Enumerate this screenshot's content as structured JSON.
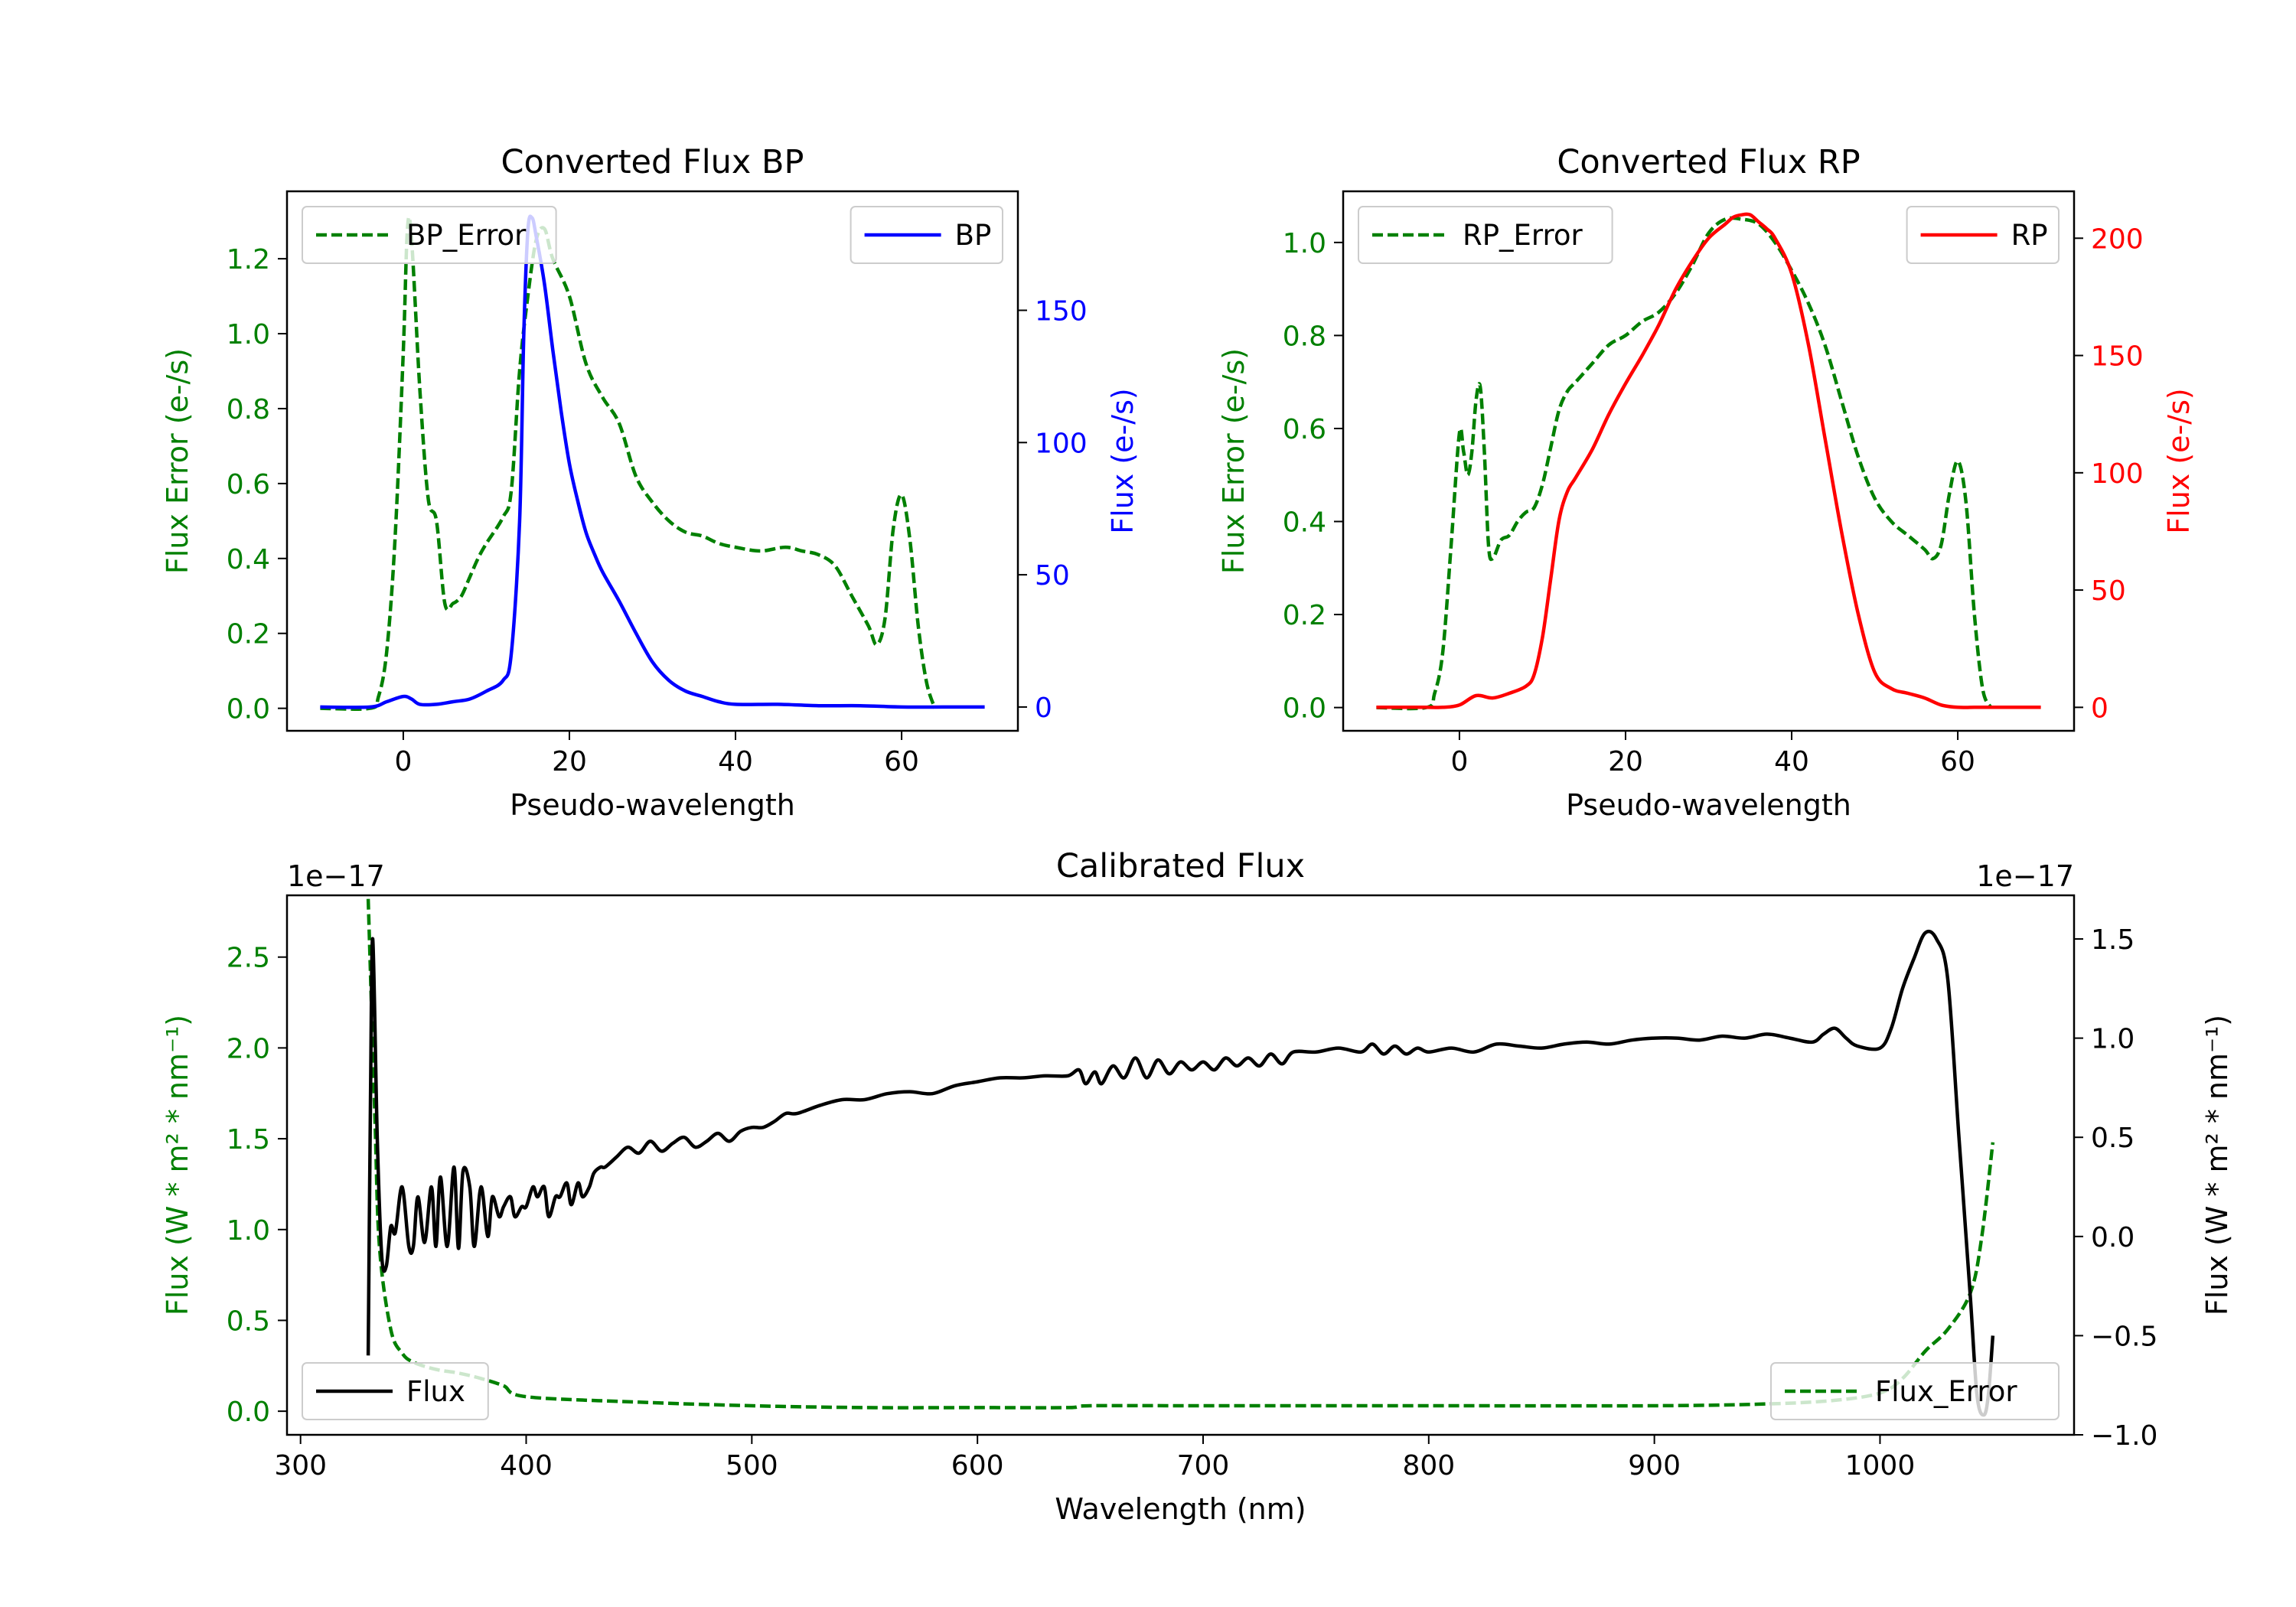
{
  "colors": {
    "green": "#008000",
    "blue": "#0000ff",
    "red": "#ff0000",
    "black": "#000000",
    "legend_edge": "#cccccc"
  },
  "chart_data": [
    {
      "id": "bp",
      "type": "line",
      "title": "Converted Flux BP",
      "xlabel": "Pseudo-wavelength",
      "ylabel_left": "Flux Error (e-/s)",
      "ylabel_right": "Flux (e-/s)",
      "xlim": [
        -14,
        74
      ],
      "ylim_left": [
        -0.06,
        1.38
      ],
      "ylim_right": [
        -9,
        195
      ],
      "xticks": [
        "0",
        "20",
        "40",
        "60"
      ],
      "xtick_values": [
        0,
        20,
        40,
        60
      ],
      "yticks_left": [
        "0.0",
        "0.2",
        "0.4",
        "0.6",
        "0.8",
        "1.0",
        "1.2"
      ],
      "ytick_values_left": [
        0,
        0.2,
        0.4,
        0.6,
        0.8,
        1.0,
        1.2
      ],
      "yticks_right": [
        "0",
        "50",
        "100",
        "150"
      ],
      "ytick_values_right": [
        0,
        50,
        100,
        150
      ],
      "legend_left": "BP_Error",
      "legend_right": "BP",
      "series": [
        {
          "name": "BP_Error",
          "axis": "left",
          "style": "dashed",
          "color": "green",
          "x": [
            -10,
            -4,
            -3,
            -2,
            -1,
            0,
            0.5,
            1,
            2,
            3,
            4,
            5,
            6,
            7,
            8,
            9,
            10,
            12,
            13,
            14,
            15,
            16,
            17,
            18,
            20,
            22,
            24,
            26,
            28,
            30,
            32,
            34,
            36,
            38,
            40,
            43,
            46,
            48,
            50,
            52,
            54,
            56,
            57,
            58,
            59,
            60,
            61,
            62,
            63,
            64
          ],
          "y": [
            0,
            0,
            0.03,
            0.15,
            0.45,
            0.95,
            1.28,
            1.25,
            0.85,
            0.56,
            0.5,
            0.28,
            0.28,
            0.3,
            0.35,
            0.4,
            0.44,
            0.51,
            0.58,
            0.9,
            1.1,
            1.25,
            1.28,
            1.2,
            1.1,
            0.92,
            0.83,
            0.76,
            0.62,
            0.55,
            0.5,
            0.47,
            0.46,
            0.44,
            0.43,
            0.42,
            0.43,
            0.42,
            0.41,
            0.38,
            0.3,
            0.22,
            0.17,
            0.24,
            0.48,
            0.57,
            0.45,
            0.22,
            0.07,
            0.0
          ]
        },
        {
          "name": "BP",
          "axis": "right",
          "style": "solid",
          "color": "blue",
          "x": [
            -10,
            -4,
            -2,
            0,
            1,
            2,
            4,
            6,
            8,
            10,
            12,
            13,
            14,
            14.5,
            15,
            15.5,
            16,
            17,
            18,
            19,
            20,
            21,
            22,
            23,
            24,
            26,
            28,
            30,
            32,
            34,
            36,
            38,
            40,
            45,
            50,
            55,
            60,
            65,
            70
          ],
          "y": [
            0,
            0,
            2,
            4,
            3,
            1,
            1,
            2,
            3,
            6,
            10,
            20,
            70,
            140,
            180,
            185,
            178,
            160,
            135,
            112,
            92,
            78,
            66,
            58,
            51,
            40,
            28,
            17,
            10,
            6,
            4,
            2,
            1,
            1,
            0.5,
            0.5,
            0,
            0,
            0
          ]
        }
      ]
    },
    {
      "id": "rp",
      "type": "line",
      "title": "Converted Flux RP",
      "xlabel": "Pseudo-wavelength",
      "ylabel_left": "Flux Error (e-/s)",
      "ylabel_right": "Flux (e-/s)",
      "xlim": [
        -14,
        74
      ],
      "ylim_left": [
        -0.05,
        1.11
      ],
      "ylim_right": [
        -10,
        220
      ],
      "xticks": [
        "0",
        "20",
        "40",
        "60"
      ],
      "xtick_values": [
        0,
        20,
        40,
        60
      ],
      "yticks_left": [
        "0.0",
        "0.2",
        "0.4",
        "0.6",
        "0.8",
        "1.0"
      ],
      "ytick_values_left": [
        0,
        0.2,
        0.4,
        0.6,
        0.8,
        1.0
      ],
      "yticks_right": [
        "0",
        "50",
        "100",
        "150",
        "200"
      ],
      "ytick_values_right": [
        0,
        50,
        100,
        150,
        200
      ],
      "legend_left": "RP_Error",
      "legend_right": "RP",
      "series": [
        {
          "name": "RP_Error",
          "axis": "left",
          "style": "dashed",
          "color": "green",
          "x": [
            -10,
            -4,
            -3,
            -2,
            -1,
            0,
            0.5,
            1,
            1.5,
            2,
            2.5,
            3,
            3.5,
            4,
            5,
            6,
            7,
            8,
            9,
            10,
            11,
            12,
            13,
            14,
            16,
            18,
            20,
            22,
            24,
            26,
            28,
            30,
            32,
            34,
            36,
            38,
            40,
            42,
            44,
            46,
            48,
            50,
            52,
            54,
            56,
            57,
            58,
            59,
            60,
            61,
            62,
            63,
            64
          ],
          "y": [
            0,
            0,
            0.03,
            0.12,
            0.35,
            0.59,
            0.55,
            0.5,
            0.55,
            0.66,
            0.69,
            0.55,
            0.35,
            0.32,
            0.36,
            0.37,
            0.4,
            0.42,
            0.43,
            0.48,
            0.56,
            0.64,
            0.68,
            0.7,
            0.74,
            0.78,
            0.8,
            0.83,
            0.85,
            0.89,
            0.95,
            1.02,
            1.05,
            1.05,
            1.04,
            1.0,
            0.94,
            0.87,
            0.78,
            0.66,
            0.54,
            0.45,
            0.4,
            0.37,
            0.34,
            0.32,
            0.35,
            0.46,
            0.53,
            0.44,
            0.2,
            0.04,
            0.0
          ]
        },
        {
          "name": "RP",
          "axis": "right",
          "style": "solid",
          "color": "red",
          "x": [
            -10,
            -4,
            -2,
            0,
            2,
            4,
            6,
            8,
            9,
            10,
            11,
            12,
            13,
            14,
            16,
            18,
            20,
            22,
            24,
            26,
            28,
            30,
            32,
            33,
            34,
            35,
            36,
            37,
            38,
            40,
            42,
            44,
            46,
            48,
            50,
            52,
            54,
            56,
            58,
            60,
            62,
            65,
            70
          ],
          "y": [
            0,
            0,
            0,
            1,
            5,
            4,
            6,
            9,
            14,
            30,
            55,
            80,
            92,
            98,
            110,
            125,
            138,
            150,
            163,
            178,
            190,
            200,
            206,
            209,
            210,
            210,
            207,
            204,
            200,
            185,
            155,
            115,
            75,
            40,
            15,
            8,
            6,
            4,
            1,
            0,
            0,
            0,
            0
          ]
        }
      ]
    },
    {
      "id": "calibrated",
      "type": "line",
      "title": "Calibrated Flux",
      "xlabel": "Wavelength (nm)",
      "ylabel_left": "Flux (W * m² * nm⁻¹)",
      "ylabel_right": "Flux (W * m² * nm⁻¹)",
      "offset_left": "1e−17",
      "offset_right": "1e−17",
      "xlim": [
        294,
        1086
      ],
      "ylim_left": [
        -0.13,
        2.84
      ],
      "ylim_right": [
        -1.0,
        1.72
      ],
      "xticks": [
        "300",
        "400",
        "500",
        "600",
        "700",
        "800",
        "900",
        "1000"
      ],
      "xtick_values": [
        300,
        400,
        500,
        600,
        700,
        800,
        900,
        1000
      ],
      "yticks_left": [
        "0.0",
        "0.5",
        "1.0",
        "1.5",
        "2.0",
        "2.5"
      ],
      "ytick_values_left": [
        0,
        0.5,
        1.0,
        1.5,
        2.0,
        2.5
      ],
      "yticks_right": [
        "−1.0",
        "−0.5",
        "0.0",
        "0.5",
        "1.0",
        "1.5"
      ],
      "ytick_values_right": [
        -1.0,
        -0.5,
        0.0,
        0.5,
        1.0,
        1.5
      ],
      "legend_left": "Flux",
      "legend_right": "Flux_Error",
      "series": [
        {
          "name": "Flux_Error",
          "axis": "left",
          "style": "dashed",
          "color": "green",
          "x": [
            330,
            333,
            335,
            340,
            345,
            350,
            360,
            370,
            380,
            390,
            400,
            450,
            500,
            550,
            600,
            640,
            650,
            700,
            800,
            900,
            950,
            980,
            1000,
            1010,
            1020,
            1030,
            1040,
            1045,
            1050
          ],
          "y": [
            2.82,
            1.6,
            0.9,
            0.45,
            0.32,
            0.27,
            0.23,
            0.21,
            0.18,
            0.14,
            0.08,
            0.05,
            0.03,
            0.02,
            0.02,
            0.02,
            0.03,
            0.03,
            0.03,
            0.03,
            0.04,
            0.06,
            0.1,
            0.18,
            0.33,
            0.45,
            0.65,
            0.95,
            1.48
          ]
        },
        {
          "name": "Flux",
          "axis": "right",
          "style": "solid",
          "color": "black",
          "x": [
            330,
            331,
            332,
            334,
            336,
            338,
            340,
            342,
            345,
            348,
            350,
            352,
            355,
            358,
            360,
            362,
            365,
            368,
            370,
            372,
            375,
            377,
            380,
            383,
            385,
            388,
            390,
            393,
            395,
            398,
            400,
            403,
            405,
            408,
            410,
            413,
            415,
            418,
            420,
            423,
            425,
            428,
            430,
            433,
            435,
            440,
            445,
            450,
            455,
            460,
            465,
            470,
            475,
            480,
            485,
            490,
            495,
            500,
            505,
            510,
            515,
            520,
            530,
            540,
            550,
            560,
            570,
            580,
            590,
            600,
            610,
            620,
            630,
            640,
            645,
            648,
            652,
            655,
            660,
            665,
            670,
            675,
            680,
            685,
            690,
            695,
            700,
            705,
            710,
            715,
            720,
            725,
            730,
            735,
            740,
            750,
            760,
            770,
            775,
            780,
            785,
            790,
            795,
            800,
            810,
            820,
            830,
            840,
            850,
            860,
            870,
            880,
            890,
            900,
            910,
            920,
            930,
            940,
            950,
            960,
            970,
            975,
            980,
            985,
            990,
            1000,
            1005,
            1010,
            1015,
            1020,
            1025,
            1030,
            1035,
            1040,
            1043,
            1046,
            1048,
            1050
          ],
          "y": [
            -0.6,
            0.7,
            1.5,
            0.5,
            -0.1,
            -0.15,
            0.05,
            0.02,
            0.25,
            -0.05,
            -0.05,
            0.2,
            -0.03,
            0.25,
            -0.05,
            0.3,
            -0.05,
            0.35,
            -0.06,
            0.33,
            0.25,
            -0.05,
            0.25,
            0.0,
            0.2,
            0.1,
            0.15,
            0.2,
            0.1,
            0.15,
            0.15,
            0.25,
            0.2,
            0.25,
            0.1,
            0.2,
            0.2,
            0.27,
            0.16,
            0.27,
            0.2,
            0.25,
            0.32,
            0.35,
            0.35,
            0.4,
            0.45,
            0.42,
            0.48,
            0.43,
            0.47,
            0.5,
            0.45,
            0.48,
            0.52,
            0.48,
            0.53,
            0.55,
            0.55,
            0.58,
            0.62,
            0.62,
            0.66,
            0.69,
            0.69,
            0.72,
            0.73,
            0.72,
            0.76,
            0.78,
            0.8,
            0.8,
            0.81,
            0.81,
            0.84,
            0.77,
            0.83,
            0.77,
            0.86,
            0.8,
            0.9,
            0.8,
            0.89,
            0.82,
            0.88,
            0.84,
            0.88,
            0.84,
            0.9,
            0.86,
            0.9,
            0.86,
            0.92,
            0.87,
            0.93,
            0.93,
            0.95,
            0.93,
            0.97,
            0.92,
            0.96,
            0.92,
            0.95,
            0.93,
            0.95,
            0.93,
            0.97,
            0.96,
            0.95,
            0.97,
            0.98,
            0.97,
            0.99,
            1.0,
            1.0,
            0.99,
            1.01,
            1.0,
            1.02,
            1.0,
            0.98,
            1.02,
            1.05,
            1.0,
            0.96,
            0.95,
            1.05,
            1.25,
            1.4,
            1.53,
            1.5,
            1.3,
            0.5,
            -0.3,
            -0.8,
            -0.9,
            -0.8,
            -0.5
          ]
        }
      ]
    }
  ]
}
